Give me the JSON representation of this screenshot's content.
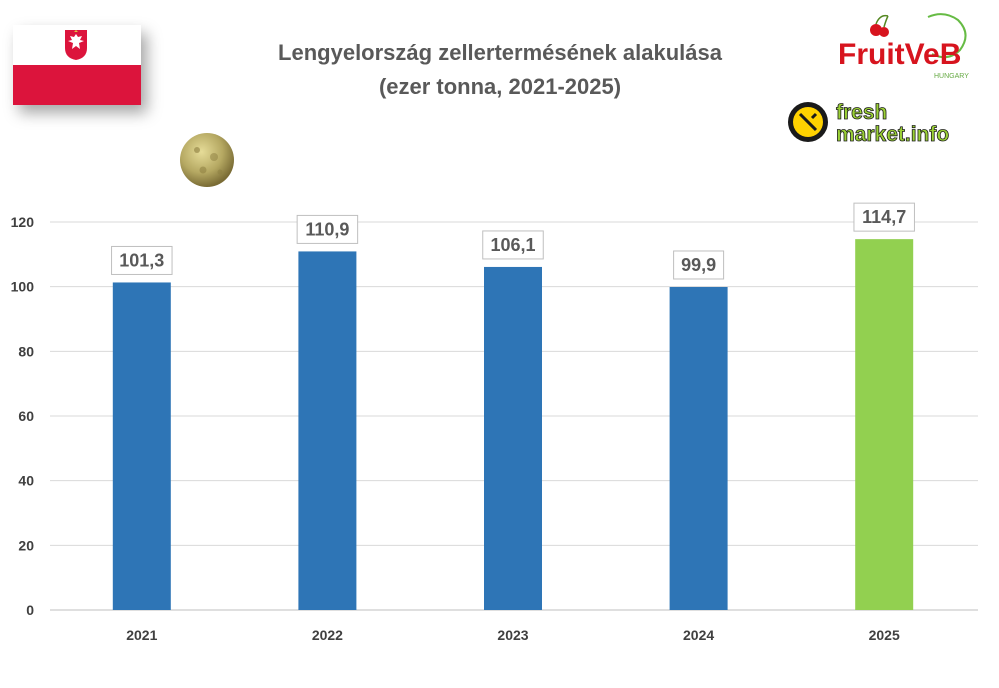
{
  "title": {
    "line1": "Lengyelország zellertermésének alakulása",
    "line2": "(ezer tonna, 2021-2025)"
  },
  "logos": {
    "fruitveb_main": "FruitVeB",
    "fruitveb_sub": "HUNGARY",
    "freshmarket_top": "fresh",
    "freshmarket_bottom": "market.info"
  },
  "colors": {
    "bar_default": "#2e75b6",
    "bar_highlight": "#92d050",
    "flag_red": "#dc143c",
    "title": "#595959"
  },
  "chart_data": {
    "type": "bar",
    "title": "Lengyelország zellertermésének alakulása (ezer tonna, 2021-2025)",
    "categories": [
      "2021",
      "2022",
      "2023",
      "2024",
      "2025"
    ],
    "values": [
      101.3,
      110.9,
      106.1,
      99.9,
      114.7
    ],
    "data_labels": [
      "101,3",
      "110,9",
      "106,1",
      "99,9",
      "114,7"
    ],
    "highlight_index": 4,
    "ylim": [
      0,
      120
    ],
    "yticks": [
      "0",
      "20",
      "40",
      "60",
      "80",
      "100",
      "120"
    ],
    "xlabel": "",
    "ylabel": "",
    "grid": true,
    "legend": "none"
  }
}
